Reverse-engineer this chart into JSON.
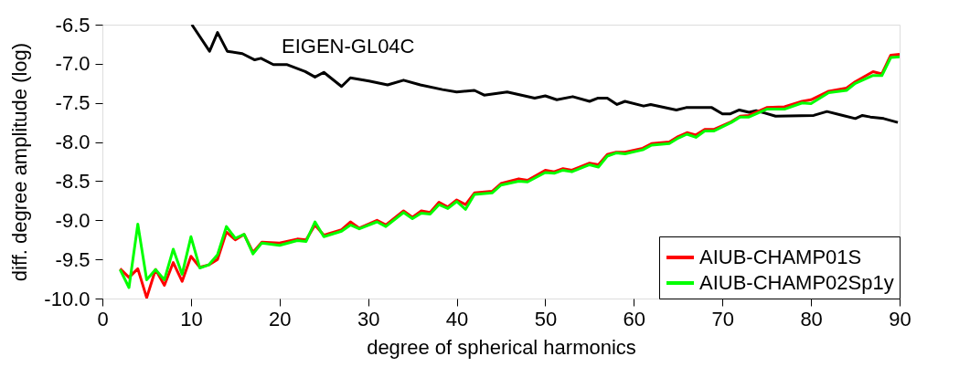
{
  "chart_data": {
    "type": "line",
    "xlabel": "degree of spherical harmonics",
    "ylabel": "diff. degree amplitude (log)",
    "xlim": [
      0,
      90
    ],
    "ylim": [
      -10.0,
      -6.5
    ],
    "xticks": [
      0,
      10,
      20,
      30,
      40,
      50,
      60,
      70,
      80,
      90
    ],
    "yticks": [
      {
        "value": -10,
        "label": "-10.0"
      },
      {
        "value": -9.5,
        "label": "-9.5"
      },
      {
        "value": -9,
        "label": "-9.0"
      },
      {
        "value": -8.5,
        "label": "-8.5"
      },
      {
        "value": -8,
        "label": "-8.0"
      },
      {
        "value": -7.5,
        "label": "-7.5"
      },
      {
        "value": -7,
        "label": "-7.0"
      },
      {
        "value": -6.5,
        "label": "-6.5"
      }
    ],
    "grid": false,
    "legend": "bottom right",
    "line_style": "solid",
    "marker": "none",
    "series": [
      {
        "name": "EIGEN-GL04C",
        "color": "#000000",
        "x": [
          10.1,
          12.1,
          13,
          14.1,
          15.8,
          17.2,
          17.9,
          19.3,
          20.8,
          22.9,
          24,
          25,
          27,
          28,
          30.1,
          32.2,
          34,
          35.9,
          38.4,
          40,
          42,
          43.1,
          45.7,
          48.8,
          50,
          51.3,
          53.1,
          55,
          55.9,
          57,
          58.1,
          59,
          61.1,
          61.9,
          64.8,
          65.9,
          68.8,
          70,
          70.9,
          71.9,
          73,
          73.8,
          74.8,
          76,
          80.3,
          81.8,
          83.6,
          85,
          85.8,
          86.7,
          88.2,
          89.8
        ],
        "values": [
          -6.5,
          -6.84,
          -6.6,
          -6.84,
          -6.87,
          -6.95,
          -6.93,
          -7.01,
          -7.01,
          -7.1,
          -7.17,
          -7.11,
          -7.29,
          -7.18,
          -7.22,
          -7.27,
          -7.21,
          -7.27,
          -7.33,
          -7.36,
          -7.34,
          -7.4,
          -7.36,
          -7.44,
          -7.41,
          -7.46,
          -7.42,
          -7.48,
          -7.44,
          -7.44,
          -7.52,
          -7.48,
          -7.54,
          -7.52,
          -7.59,
          -7.56,
          -7.56,
          -7.64,
          -7.64,
          -7.59,
          -7.62,
          -7.6,
          -7.63,
          -7.67,
          -7.66,
          -7.61,
          -7.66,
          -7.7,
          -7.66,
          -7.68,
          -7.7,
          -7.75
        ]
      },
      {
        "name": "AIUB-CHAMP01S",
        "color": "#ff0000",
        "x": [
          2,
          3,
          4,
          5,
          6,
          7,
          8,
          9,
          10,
          11,
          12,
          13,
          14,
          15,
          16,
          17,
          18,
          20,
          22,
          23,
          24,
          25,
          27,
          28,
          29,
          31,
          32,
          34,
          35,
          36,
          37,
          38,
          39,
          40,
          41,
          42,
          44,
          45,
          47,
          48,
          50,
          51,
          52,
          53,
          55,
          56,
          57,
          58,
          59,
          61,
          62,
          64,
          65,
          66,
          67,
          68,
          69,
          71,
          72,
          73,
          75,
          77,
          79,
          80,
          82,
          84,
          85,
          87,
          88,
          89,
          90
        ],
        "values": [
          -9.62,
          -9.73,
          -9.62,
          -9.99,
          -9.63,
          -9.83,
          -9.54,
          -9.78,
          -9.46,
          -9.6,
          -9.57,
          -9.5,
          -9.15,
          -9.25,
          -9.18,
          -9.41,
          -9.28,
          -9.29,
          -9.24,
          -9.25,
          -9.06,
          -9.19,
          -9.12,
          -9.02,
          -9.1,
          -9.0,
          -9.06,
          -8.88,
          -8.96,
          -8.88,
          -8.9,
          -8.77,
          -8.83,
          -8.74,
          -8.8,
          -8.65,
          -8.63,
          -8.53,
          -8.47,
          -8.49,
          -8.36,
          -8.38,
          -8.34,
          -8.36,
          -8.27,
          -8.29,
          -8.16,
          -8.13,
          -8.13,
          -8.08,
          -8.02,
          -8.0,
          -7.93,
          -7.88,
          -7.91,
          -7.84,
          -7.84,
          -7.74,
          -7.67,
          -7.66,
          -7.56,
          -7.55,
          -7.48,
          -7.46,
          -7.35,
          -7.31,
          -7.23,
          -7.1,
          -7.13,
          -6.89,
          -6.88
        ]
      },
      {
        "name": "AIUB-CHAMP02Sp1y",
        "color": "#00ff00",
        "x": [
          2,
          3,
          4,
          5,
          6,
          7,
          8,
          9,
          10,
          11,
          12,
          13,
          14,
          15,
          16,
          17,
          18,
          20,
          22,
          23,
          24,
          25,
          27,
          28,
          29,
          31,
          32,
          34,
          35,
          36,
          37,
          38,
          39,
          40,
          41,
          42,
          44,
          45,
          47,
          48,
          50,
          51,
          52,
          53,
          55,
          56,
          57,
          58,
          59,
          61,
          62,
          64,
          65,
          66,
          67,
          68,
          69,
          71,
          72,
          73,
          75,
          77,
          79,
          80,
          82,
          84,
          85,
          87,
          88,
          89,
          90
        ],
        "values": [
          -9.63,
          -9.86,
          -9.05,
          -9.76,
          -9.63,
          -9.76,
          -9.37,
          -9.69,
          -9.21,
          -9.61,
          -9.57,
          -9.44,
          -9.08,
          -9.23,
          -9.18,
          -9.43,
          -9.29,
          -9.32,
          -9.26,
          -9.27,
          -9.02,
          -9.21,
          -9.14,
          -9.06,
          -9.11,
          -9.02,
          -9.08,
          -8.9,
          -8.98,
          -8.91,
          -8.92,
          -8.8,
          -8.85,
          -8.76,
          -8.86,
          -8.67,
          -8.65,
          -8.55,
          -8.5,
          -8.51,
          -8.39,
          -8.4,
          -8.36,
          -8.38,
          -8.29,
          -8.32,
          -8.18,
          -8.14,
          -8.15,
          -8.1,
          -8.04,
          -8.02,
          -7.95,
          -7.9,
          -7.94,
          -7.86,
          -7.86,
          -7.75,
          -7.68,
          -7.68,
          -7.58,
          -7.58,
          -7.5,
          -7.51,
          -7.37,
          -7.34,
          -7.25,
          -7.15,
          -7.15,
          -6.92,
          -6.91
        ]
      }
    ]
  }
}
